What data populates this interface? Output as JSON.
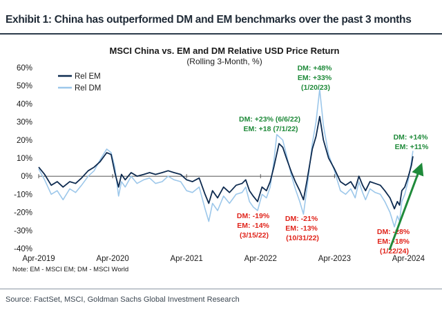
{
  "exhibit_title": "Exhibit 1: China has outperformed DM and EM benchmarks over the past 3 months",
  "source": "Source: FactSet, MSCI, Goldman Sachs Global Investment Research",
  "chart_data": {
    "type": "line",
    "title": "MSCI China vs. EM and DM Relative USD Price Return",
    "subtitle": "(Rolling 3-Month, %)",
    "note": "Note: EM - MSCI EM; DM - MSCI World",
    "y_ticks": [
      "60%",
      "50%",
      "40%",
      "30%",
      "20%",
      "10%",
      "0%",
      "-10%",
      "-20%",
      "-30%",
      "-40%"
    ],
    "ylim": [
      -40,
      60
    ],
    "x_ticks": [
      {
        "label": "Apr-2019",
        "t": 2019.25
      },
      {
        "label": "Apr-2020",
        "t": 2020.25
      },
      {
        "label": "Apr-2021",
        "t": 2021.25
      },
      {
        "label": "Apr-2022",
        "t": 2022.25
      },
      {
        "label": "Apr-2023",
        "t": 2023.25
      },
      {
        "label": "Apr-2024",
        "t": 2024.25
      }
    ],
    "xlim": [
      2019.25,
      2024.33
    ],
    "grid": false,
    "legend_position": "top-left",
    "colors": {
      "rel_em": "#0d2a4f",
      "rel_dm": "#9cc7ea",
      "green": "#1f8a3a",
      "red": "#e0241b",
      "axis": "#555555"
    },
    "series": [
      {
        "name": "Rel EM",
        "points": [
          [
            2019.25,
            5
          ],
          [
            2019.33,
            1
          ],
          [
            2019.42,
            -5
          ],
          [
            2019.5,
            -3
          ],
          [
            2019.58,
            -6
          ],
          [
            2019.67,
            -3
          ],
          [
            2019.75,
            -4
          ],
          [
            2019.83,
            -1
          ],
          [
            2019.92,
            3
          ],
          [
            2020.0,
            5
          ],
          [
            2020.08,
            8
          ],
          [
            2020.17,
            13
          ],
          [
            2020.23,
            12
          ],
          [
            2020.28,
            2
          ],
          [
            2020.33,
            -6
          ],
          [
            2020.37,
            1
          ],
          [
            2020.42,
            -2
          ],
          [
            2020.5,
            2
          ],
          [
            2020.58,
            0
          ],
          [
            2020.67,
            1
          ],
          [
            2020.75,
            2
          ],
          [
            2020.83,
            1
          ],
          [
            2020.92,
            2
          ],
          [
            2021.0,
            3
          ],
          [
            2021.08,
            2
          ],
          [
            2021.17,
            1
          ],
          [
            2021.25,
            -2
          ],
          [
            2021.33,
            -3
          ],
          [
            2021.42,
            -1
          ],
          [
            2021.5,
            -10
          ],
          [
            2021.55,
            -15
          ],
          [
            2021.6,
            -8
          ],
          [
            2021.67,
            -12
          ],
          [
            2021.75,
            -6
          ],
          [
            2021.83,
            -9
          ],
          [
            2021.92,
            -5
          ],
          [
            2022.0,
            -4
          ],
          [
            2022.05,
            -2
          ],
          [
            2022.1,
            -8
          ],
          [
            2022.15,
            -11
          ],
          [
            2022.21,
            -14
          ],
          [
            2022.27,
            -6
          ],
          [
            2022.33,
            -8
          ],
          [
            2022.38,
            -3
          ],
          [
            2022.43,
            5
          ],
          [
            2022.5,
            18
          ],
          [
            2022.55,
            16
          ],
          [
            2022.6,
            10
          ],
          [
            2022.67,
            2
          ],
          [
            2022.72,
            -3
          ],
          [
            2022.78,
            -8
          ],
          [
            2022.83,
            -13
          ],
          [
            2022.88,
            -2
          ],
          [
            2022.95,
            15
          ],
          [
            2023.0,
            22
          ],
          [
            2023.05,
            33
          ],
          [
            2023.1,
            20
          ],
          [
            2023.17,
            10
          ],
          [
            2023.25,
            4
          ],
          [
            2023.33,
            -3
          ],
          [
            2023.4,
            -5
          ],
          [
            2023.47,
            -3
          ],
          [
            2023.53,
            -7
          ],
          [
            2023.58,
            0
          ],
          [
            2023.63,
            -5
          ],
          [
            2023.67,
            -8
          ],
          [
            2023.73,
            -3
          ],
          [
            2023.8,
            -4
          ],
          [
            2023.87,
            -5
          ],
          [
            2023.93,
            -8
          ],
          [
            2024.0,
            -12
          ],
          [
            2024.06,
            -18
          ],
          [
            2024.1,
            -14
          ],
          [
            2024.13,
            -16
          ],
          [
            2024.16,
            -8
          ],
          [
            2024.2,
            -6
          ],
          [
            2024.25,
            0
          ],
          [
            2024.29,
            6
          ],
          [
            2024.31,
            11
          ]
        ]
      },
      {
        "name": "Rel DM",
        "points": [
          [
            2019.25,
            4
          ],
          [
            2019.33,
            -2
          ],
          [
            2019.42,
            -10
          ],
          [
            2019.5,
            -8
          ],
          [
            2019.58,
            -13
          ],
          [
            2019.67,
            -7
          ],
          [
            2019.75,
            -9
          ],
          [
            2019.83,
            -5
          ],
          [
            2019.92,
            0
          ],
          [
            2020.0,
            3
          ],
          [
            2020.08,
            9
          ],
          [
            2020.17,
            15
          ],
          [
            2020.23,
            13
          ],
          [
            2020.28,
            5
          ],
          [
            2020.33,
            -11
          ],
          [
            2020.37,
            -3
          ],
          [
            2020.42,
            -6
          ],
          [
            2020.5,
            0
          ],
          [
            2020.58,
            -4
          ],
          [
            2020.67,
            -2
          ],
          [
            2020.75,
            -1
          ],
          [
            2020.83,
            -4
          ],
          [
            2020.92,
            -3
          ],
          [
            2021.0,
            0
          ],
          [
            2021.08,
            -2
          ],
          [
            2021.17,
            -3
          ],
          [
            2021.25,
            -8
          ],
          [
            2021.33,
            -9
          ],
          [
            2021.42,
            -6
          ],
          [
            2021.5,
            -18
          ],
          [
            2021.55,
            -25
          ],
          [
            2021.6,
            -15
          ],
          [
            2021.67,
            -19
          ],
          [
            2021.75,
            -11
          ],
          [
            2021.83,
            -15
          ],
          [
            2021.92,
            -10
          ],
          [
            2022.0,
            -9
          ],
          [
            2022.05,
            -6
          ],
          [
            2022.1,
            -14
          ],
          [
            2022.15,
            -17
          ],
          [
            2022.21,
            -19
          ],
          [
            2022.27,
            -10
          ],
          [
            2022.33,
            -12
          ],
          [
            2022.38,
            -6
          ],
          [
            2022.43,
            8
          ],
          [
            2022.47,
            23
          ],
          [
            2022.55,
            20
          ],
          [
            2022.6,
            12
          ],
          [
            2022.67,
            0
          ],
          [
            2022.72,
            -7
          ],
          [
            2022.78,
            -14
          ],
          [
            2022.83,
            -21
          ],
          [
            2022.88,
            -6
          ],
          [
            2022.95,
            18
          ],
          [
            2023.0,
            30
          ],
          [
            2023.05,
            48
          ],
          [
            2023.1,
            28
          ],
          [
            2023.17,
            12
          ],
          [
            2023.25,
            3
          ],
          [
            2023.33,
            -8
          ],
          [
            2023.4,
            -10
          ],
          [
            2023.47,
            -7
          ],
          [
            2023.53,
            -12
          ],
          [
            2023.58,
            -3
          ],
          [
            2023.63,
            -9
          ],
          [
            2023.67,
            -13
          ],
          [
            2023.73,
            -7
          ],
          [
            2023.8,
            -9
          ],
          [
            2023.87,
            -10
          ],
          [
            2023.93,
            -14
          ],
          [
            2024.0,
            -20
          ],
          [
            2024.06,
            -28
          ],
          [
            2024.1,
            -22
          ],
          [
            2024.13,
            -25
          ],
          [
            2024.16,
            -14
          ],
          [
            2024.2,
            -10
          ],
          [
            2024.25,
            -2
          ],
          [
            2024.29,
            8
          ],
          [
            2024.31,
            14
          ]
        ]
      }
    ],
    "annotations": [
      {
        "color": "green",
        "lines": [
          "DM: +48%",
          "EM: +33%",
          "(1/20/23)"
        ],
        "t": 2023.05,
        "y": 48
      },
      {
        "color": "green",
        "lines": [
          "DM: +23% (6/6/22)",
          "EM: +18 (7/1/22)"
        ],
        "t": 2022.47,
        "y": 23
      },
      {
        "color": "green",
        "lines": [
          "DM: +14%",
          "EM: +11%"
        ],
        "t": 2024.31,
        "y": 14
      },
      {
        "color": "red",
        "lines": [
          "DM: -19%",
          "EM: -14%",
          "(3/15/22)"
        ],
        "t": 2022.21,
        "y": -19
      },
      {
        "color": "red",
        "lines": [
          "DM: -21%",
          "EM: -13%",
          "(10/31/22)"
        ],
        "t": 2022.83,
        "y": -21
      },
      {
        "color": "red",
        "lines": [
          "DM: -28%",
          "EM: -18%",
          "(1/22/24)"
        ],
        "t": 2024.06,
        "y": -28
      }
    ]
  }
}
